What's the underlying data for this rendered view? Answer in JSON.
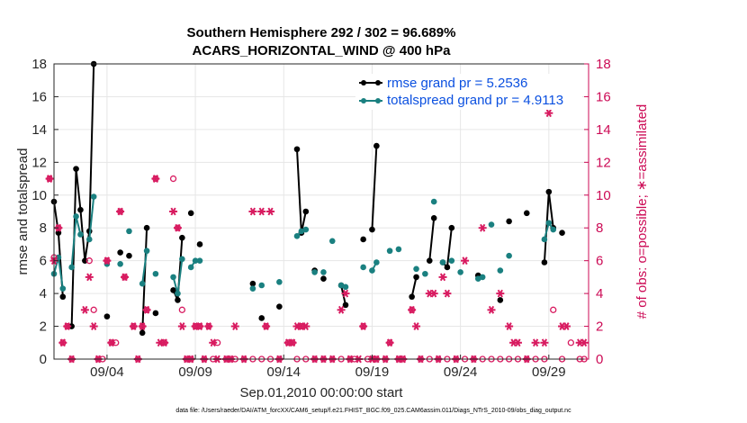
{
  "chart_data": {
    "type": "line",
    "title": "Southern Hemisphere 292 / 302 = 96.689%",
    "subtitle": "ACARS_HORIZONTAL_WIND @ 400 hPa",
    "xlabel": "Sep.01,2010 00:00:00 start",
    "ylabel": "rmse and totalspread",
    "ylabel_right": "# of obs: o=possible; ∗=assimilated",
    "footer": "data file: /Users/raeder/DAI/ATM_forcXX/CAM6_setup/f.e21.FHIST_BGC.f09_025.CAM6assim.011/Diags_NTrS_2010-09/obs_diag_output.nc",
    "xlim": [
      0.5,
      30.75
    ],
    "ylim": [
      0,
      18
    ],
    "ylim_right": [
      0,
      18
    ],
    "grid": true,
    "legend_position": "top-right",
    "x_tick_values": [
      3.5,
      8.5,
      13.5,
      18.5,
      23.5,
      28.5
    ],
    "x_tick_labels": [
      "09/04",
      "09/09",
      "09/14",
      "09/19",
      "09/24",
      "09/29"
    ],
    "y_ticks": [
      0,
      2,
      4,
      6,
      8,
      10,
      12,
      14,
      16,
      18
    ],
    "y_ticks_right": [
      0,
      2,
      4,
      6,
      8,
      10,
      12,
      14,
      16,
      18
    ],
    "series": [
      {
        "name": "rmse grand pr = 5.2536",
        "color": "#000000",
        "points": [
          [
            0.5,
            9.6
          ],
          [
            0.75,
            7.7
          ],
          [
            1.0,
            3.8
          ],
          [
            1.5,
            2.0
          ],
          [
            1.75,
            11.6
          ],
          [
            2.0,
            9.1
          ],
          [
            2.25,
            6.0
          ],
          [
            2.5,
            7.8
          ],
          [
            2.75,
            18.0
          ],
          [
            3.5,
            2.6
          ],
          [
            4.25,
            6.5
          ],
          [
            4.75,
            6.3
          ],
          [
            5.5,
            1.6
          ],
          [
            5.75,
            8.0
          ],
          [
            6.25,
            2.8
          ],
          [
            7.25,
            4.2
          ],
          [
            7.5,
            3.6
          ],
          [
            7.75,
            7.4
          ],
          [
            8.25,
            8.9
          ],
          [
            8.75,
            7.0
          ],
          [
            11.75,
            4.6
          ],
          [
            12.25,
            2.5
          ],
          [
            13.25,
            3.2
          ],
          [
            14.25,
            12.8
          ],
          [
            14.5,
            7.7
          ],
          [
            14.75,
            9.0
          ],
          [
            15.25,
            5.4
          ],
          [
            15.75,
            4.9
          ],
          [
            16.75,
            4.5
          ],
          [
            17.0,
            3.3
          ],
          [
            18.0,
            7.3
          ],
          [
            18.5,
            7.9
          ],
          [
            18.75,
            13.0
          ],
          [
            20.75,
            3.8
          ],
          [
            21.0,
            5.0
          ],
          [
            21.75,
            6.0
          ],
          [
            22.0,
            8.6
          ],
          [
            22.5,
            5.9
          ],
          [
            22.75,
            5.6
          ],
          [
            23.0,
            8.0
          ],
          [
            24.5,
            5.1
          ],
          [
            25.75,
            3.6
          ],
          [
            26.25,
            8.4
          ],
          [
            27.25,
            8.9
          ],
          [
            28.25,
            5.9
          ],
          [
            28.5,
            10.2
          ],
          [
            28.75,
            8.0
          ],
          [
            29.25,
            7.7
          ]
        ]
      },
      {
        "name": "totalspread grand pr = 4.9113",
        "color": "#1a8080",
        "points": [
          [
            0.5,
            5.2
          ],
          [
            0.75,
            6.2
          ],
          [
            1.0,
            4.3
          ],
          [
            1.5,
            5.6
          ],
          [
            1.75,
            8.7
          ],
          [
            2.0,
            7.6
          ],
          [
            2.5,
            7.3
          ],
          [
            2.75,
            9.9
          ],
          [
            3.5,
            5.8
          ],
          [
            4.25,
            5.8
          ],
          [
            4.75,
            7.8
          ],
          [
            5.5,
            4.6
          ],
          [
            5.75,
            6.6
          ],
          [
            6.25,
            5.2
          ],
          [
            7.25,
            5.0
          ],
          [
            7.5,
            4.0
          ],
          [
            7.75,
            6.1
          ],
          [
            8.25,
            5.6
          ],
          [
            8.5,
            6.0
          ],
          [
            8.75,
            6.0
          ],
          [
            11.75,
            4.3
          ],
          [
            12.25,
            4.5
          ],
          [
            13.25,
            4.7
          ],
          [
            14.25,
            7.5
          ],
          [
            14.5,
            7.8
          ],
          [
            14.75,
            7.9
          ],
          [
            15.25,
            5.3
          ],
          [
            15.75,
            5.3
          ],
          [
            16.25,
            7.2
          ],
          [
            16.75,
            4.5
          ],
          [
            17.0,
            4.4
          ],
          [
            18.0,
            5.6
          ],
          [
            18.5,
            5.4
          ],
          [
            18.75,
            5.9
          ],
          [
            19.5,
            6.6
          ],
          [
            20.0,
            6.7
          ],
          [
            21.0,
            5.5
          ],
          [
            21.5,
            5.2
          ],
          [
            22.0,
            9.6
          ],
          [
            22.5,
            5.9
          ],
          [
            23.0,
            6.0
          ],
          [
            23.5,
            5.3
          ],
          [
            24.5,
            4.9
          ],
          [
            24.75,
            5.0
          ],
          [
            25.25,
            8.2
          ],
          [
            25.75,
            5.4
          ],
          [
            26.25,
            6.3
          ],
          [
            28.25,
            7.3
          ],
          [
            28.5,
            8.3
          ],
          [
            28.75,
            7.9
          ]
        ]
      }
    ],
    "obs_possible": [
      [
        0.25,
        11.0
      ],
      [
        0.5,
        6.2
      ],
      [
        0.75,
        8.0
      ],
      [
        1.0,
        1.0
      ],
      [
        1.25,
        2.0
      ],
      [
        1.5,
        0.0
      ],
      [
        2.5,
        6.0
      ],
      [
        2.75,
        3.0
      ],
      [
        3.0,
        0.0
      ],
      [
        3.25,
        0.0
      ],
      [
        3.5,
        6.0
      ],
      [
        3.75,
        1.0
      ],
      [
        4.0,
        1.0
      ],
      [
        4.25,
        9.0
      ],
      [
        4.5,
        5.0
      ],
      [
        5.0,
        2.0
      ],
      [
        5.25,
        0.0
      ],
      [
        5.5,
        2.0
      ],
      [
        5.75,
        3.0
      ],
      [
        6.25,
        11.0
      ],
      [
        6.75,
        1.0
      ],
      [
        7.25,
        11.0
      ],
      [
        7.5,
        8.0
      ],
      [
        7.75,
        3.0
      ],
      [
        8.0,
        0.0
      ],
      [
        8.25,
        0.0
      ],
      [
        8.5,
        2.0
      ],
      [
        8.75,
        2.0
      ],
      [
        9.0,
        0.0
      ],
      [
        9.25,
        2.0
      ],
      [
        9.5,
        0.0
      ],
      [
        9.75,
        1.0
      ],
      [
        10.25,
        0.0
      ],
      [
        10.5,
        0.0
      ],
      [
        10.75,
        0.0
      ],
      [
        11.25,
        0.0
      ],
      [
        11.75,
        0.0
      ],
      [
        12.25,
        0.0
      ],
      [
        12.5,
        2.0
      ],
      [
        12.75,
        0.0
      ],
      [
        13.25,
        0.0
      ],
      [
        13.75,
        1.0
      ],
      [
        14.0,
        1.0
      ],
      [
        14.25,
        0.0
      ],
      [
        14.5,
        2.0
      ],
      [
        14.75,
        0.0
      ],
      [
        15.25,
        0.0
      ],
      [
        15.75,
        0.0
      ],
      [
        16.25,
        0.0
      ],
      [
        16.75,
        0.0
      ],
      [
        17.25,
        0.0
      ],
      [
        17.5,
        0.0
      ],
      [
        18.0,
        2.0
      ],
      [
        18.25,
        0.0
      ],
      [
        18.75,
        0.0
      ],
      [
        19.25,
        0.0
      ],
      [
        19.5,
        1.0
      ],
      [
        20.0,
        0.0
      ],
      [
        20.25,
        0.0
      ],
      [
        20.75,
        3.0
      ],
      [
        21.25,
        0.0
      ],
      [
        21.75,
        0.0
      ],
      [
        22.25,
        0.0
      ],
      [
        22.75,
        0.0
      ],
      [
        23.25,
        0.0
      ],
      [
        23.75,
        0.0
      ],
      [
        24.25,
        0.0
      ],
      [
        24.75,
        0.0
      ],
      [
        25.25,
        0.0
      ],
      [
        25.75,
        0.0
      ],
      [
        26.25,
        0.0
      ],
      [
        26.75,
        0.0
      ],
      [
        27.25,
        0.0
      ],
      [
        27.75,
        0.0
      ],
      [
        28.25,
        0.0
      ],
      [
        28.75,
        3.0
      ],
      [
        29.25,
        0.0
      ],
      [
        29.75,
        1.0
      ],
      [
        30.25,
        0.0
      ],
      [
        30.5,
        0.0
      ]
    ],
    "obs_assimilated": [
      [
        0.25,
        11.0
      ],
      [
        0.5,
        6.0
      ],
      [
        0.75,
        8.0
      ],
      [
        1.0,
        1.0
      ],
      [
        1.25,
        2.0
      ],
      [
        1.5,
        0.0
      ],
      [
        2.25,
        3.0
      ],
      [
        2.5,
        5.0
      ],
      [
        2.75,
        2.0
      ],
      [
        3.0,
        0.0
      ],
      [
        3.5,
        6.0
      ],
      [
        3.75,
        1.0
      ],
      [
        4.25,
        9.0
      ],
      [
        4.5,
        5.0
      ],
      [
        5.0,
        2.0
      ],
      [
        5.25,
        0.0
      ],
      [
        5.5,
        2.0
      ],
      [
        5.75,
        3.0
      ],
      [
        6.25,
        11.0
      ],
      [
        6.5,
        1.0
      ],
      [
        6.75,
        1.0
      ],
      [
        7.25,
        9.0
      ],
      [
        7.5,
        8.0
      ],
      [
        7.75,
        2.0
      ],
      [
        8.0,
        0.0
      ],
      [
        8.25,
        0.0
      ],
      [
        8.5,
        2.0
      ],
      [
        8.75,
        2.0
      ],
      [
        9.0,
        0.0
      ],
      [
        9.25,
        2.0
      ],
      [
        9.5,
        1.0
      ],
      [
        9.75,
        0.0
      ],
      [
        10.25,
        0.0
      ],
      [
        10.5,
        0.0
      ],
      [
        10.75,
        2.0
      ],
      [
        11.25,
        0.0
      ],
      [
        11.75,
        9.0
      ],
      [
        12.25,
        9.0
      ],
      [
        12.5,
        2.0
      ],
      [
        12.75,
        9.0
      ],
      [
        13.25,
        0.0
      ],
      [
        13.75,
        1.0
      ],
      [
        14.0,
        1.0
      ],
      [
        14.25,
        2.0
      ],
      [
        14.5,
        2.0
      ],
      [
        14.75,
        2.0
      ],
      [
        15.25,
        0.0
      ],
      [
        15.75,
        0.0
      ],
      [
        16.25,
        0.0
      ],
      [
        16.75,
        3.0
      ],
      [
        17.0,
        4.0
      ],
      [
        17.25,
        0.0
      ],
      [
        17.75,
        0.0
      ],
      [
        18.0,
        2.0
      ],
      [
        18.5,
        0.0
      ],
      [
        18.75,
        0.0
      ],
      [
        19.25,
        0.0
      ],
      [
        19.5,
        1.0
      ],
      [
        20.0,
        0.0
      ],
      [
        20.25,
        0.0
      ],
      [
        20.75,
        3.0
      ],
      [
        21.0,
        2.0
      ],
      [
        21.25,
        0.0
      ],
      [
        21.75,
        4.0
      ],
      [
        22.0,
        4.0
      ],
      [
        22.25,
        0.0
      ],
      [
        22.5,
        5.0
      ],
      [
        22.75,
        4.0
      ],
      [
        23.25,
        0.0
      ],
      [
        23.75,
        6.0
      ],
      [
        24.25,
        0.0
      ],
      [
        24.75,
        8.0
      ],
      [
        25.25,
        3.0
      ],
      [
        25.75,
        4.0
      ],
      [
        26.25,
        2.0
      ],
      [
        26.5,
        1.0
      ],
      [
        26.75,
        1.0
      ],
      [
        27.25,
        0.0
      ],
      [
        27.75,
        1.0
      ],
      [
        28.25,
        1.0
      ],
      [
        28.5,
        15.0
      ],
      [
        29.25,
        2.0
      ],
      [
        29.5,
        2.0
      ],
      [
        30.25,
        1.0
      ],
      [
        30.5,
        1.0
      ]
    ]
  }
}
